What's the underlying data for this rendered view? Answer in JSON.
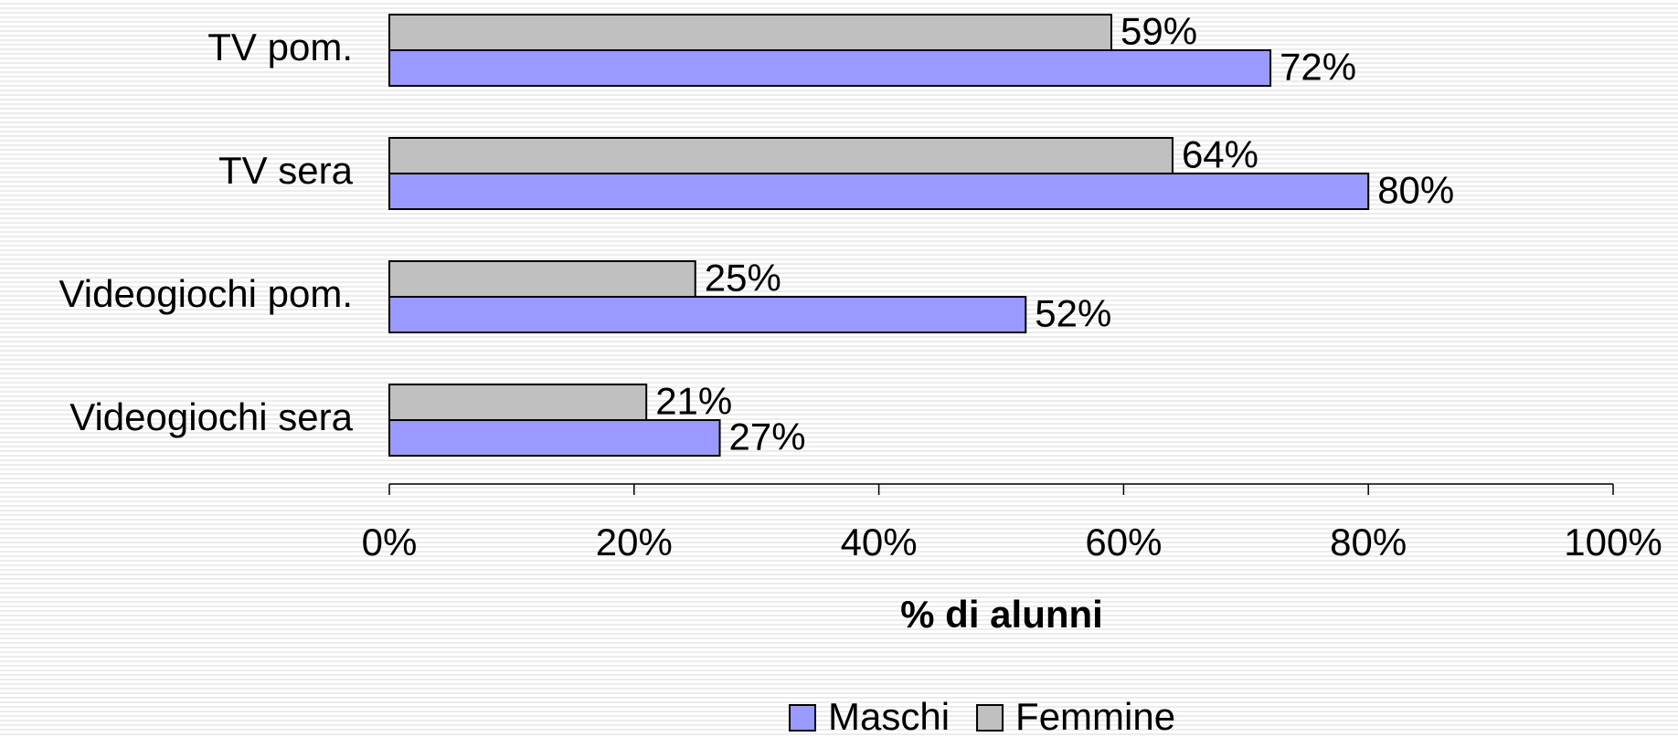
{
  "chart_data": {
    "type": "bar",
    "orientation": "horizontal",
    "categories": [
      "TV pom.",
      "TV sera",
      "Videogiochi pom.",
      "Videogiochi sera"
    ],
    "series": [
      {
        "name": "Maschi",
        "color": "#9999ff",
        "values": [
          72,
          80,
          52,
          27
        ],
        "value_labels": [
          "72%",
          "80%",
          "52%",
          "27%"
        ]
      },
      {
        "name": "Femmine",
        "color": "#c0c0c0",
        "values": [
          59,
          64,
          25,
          21
        ],
        "value_labels": [
          "59%",
          "64%",
          "25%",
          "21%"
        ]
      }
    ],
    "xlabel": "% di alunni",
    "xlim": [
      0,
      100
    ],
    "xticks": [
      {
        "value": 0,
        "label": "0%"
      },
      {
        "value": 20,
        "label": "20%"
      },
      {
        "value": 40,
        "label": "40%"
      },
      {
        "value": 60,
        "label": "60%"
      },
      {
        "value": 80,
        "label": "80%"
      },
      {
        "value": 100,
        "label": "100%"
      }
    ],
    "legend": "bottom"
  }
}
